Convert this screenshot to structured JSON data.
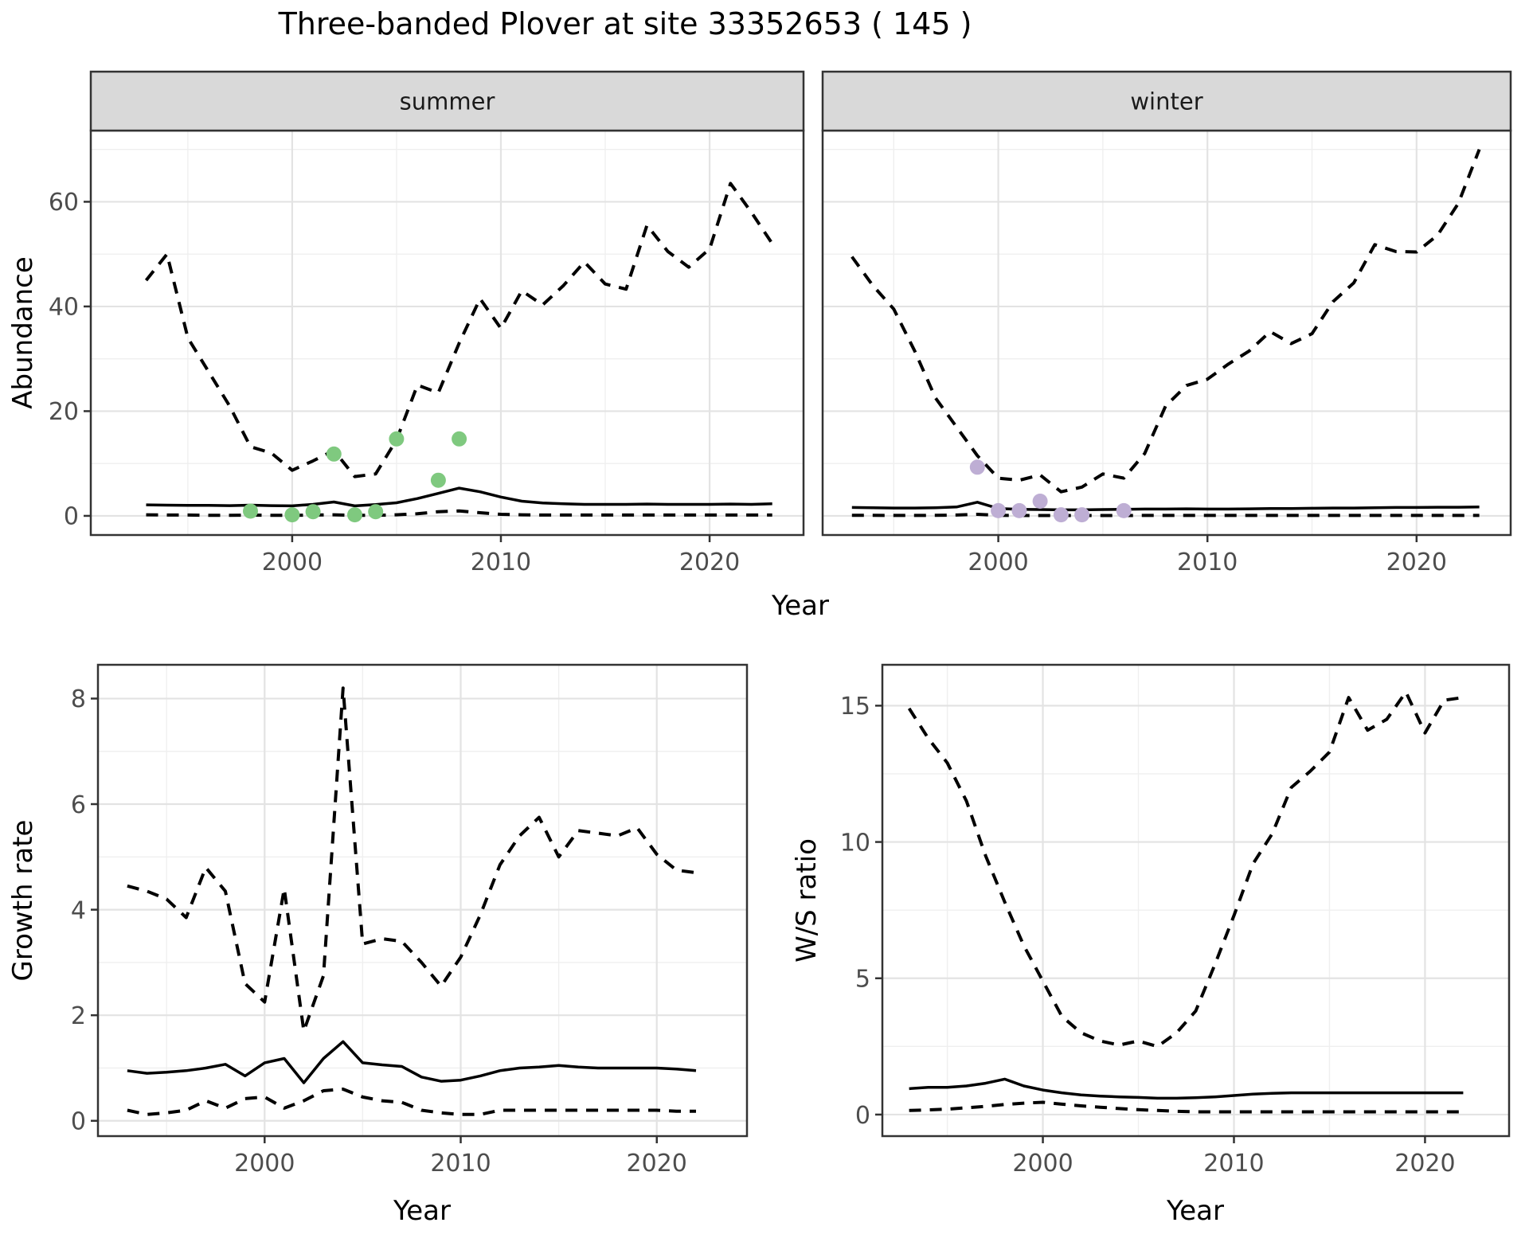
{
  "figure": {
    "title": "Three-banded Plover at site 33352653 ( 145 )"
  },
  "colors": {
    "summer_points": "#7FC97F",
    "winter_points": "#BEAED4",
    "line": "#000000",
    "strip_bg": "#D9D9D9",
    "panel_bg": "#FFFFFF",
    "panel_border": "#333333",
    "grid_major": "#E3E3E3",
    "grid_minor": "#EFEFEF",
    "tick": "#333333",
    "axis_text": "#4D4D4D",
    "title_text": "#000000"
  },
  "chart_data": [
    {
      "id": "abundance-summer",
      "type": "line",
      "facet_label": "summer",
      "ylabel": "Abundance",
      "xlabel": "Year",
      "xlim": [
        1990.35,
        2024.5
      ],
      "ylim": [
        -3.66,
        73.6
      ],
      "xticks": {
        "major": [
          2000,
          2010,
          2020
        ],
        "minor": [
          1995,
          2005,
          2015
        ],
        "labels": [
          "2000",
          "2010",
          "2020"
        ]
      },
      "yticks": {
        "major": [
          0,
          20,
          40,
          60
        ],
        "minor": [
          10,
          30,
          50,
          70
        ],
        "labels": [
          "0",
          "20",
          "40",
          "60"
        ],
        "show_labels": true
      },
      "x": [
        1993,
        1994,
        1995,
        1996,
        1997,
        1998,
        1999,
        2000,
        2001,
        2002,
        2003,
        2004,
        2005,
        2006,
        2007,
        2008,
        2009,
        2010,
        2011,
        2012,
        2013,
        2014,
        2015,
        2016,
        2017,
        2018,
        2019,
        2020,
        2021,
        2022,
        2023
      ],
      "series": [
        {
          "name": "upper_ci",
          "style": "dashed",
          "values": [
            45,
            50,
            34,
            27.5,
            21,
            13.2,
            12,
            8.7,
            10.5,
            12.5,
            7.5,
            8,
            14.5,
            25,
            23.5,
            33,
            41.5,
            35.8,
            43,
            40.3,
            44,
            48.5,
            44.3,
            43.3,
            55.5,
            50.5,
            47.5,
            51,
            63.5,
            58,
            52
          ]
        },
        {
          "name": "median",
          "style": "solid",
          "values": [
            2.1,
            2.05,
            2,
            2,
            1.95,
            2.05,
            1.95,
            1.9,
            2.2,
            2.65,
            1.9,
            2.15,
            2.5,
            3.3,
            4.3,
            5.3,
            4.6,
            3.6,
            2.8,
            2.45,
            2.3,
            2.2,
            2.2,
            2.2,
            2.25,
            2.2,
            2.2,
            2.2,
            2.25,
            2.2,
            2.3
          ]
        },
        {
          "name": "lower_ci",
          "style": "dashed",
          "values": [
            0.2,
            0.15,
            0.15,
            0.1,
            0.1,
            0.15,
            0.1,
            0.1,
            0.15,
            0.2,
            0.1,
            0.1,
            0.2,
            0.4,
            0.8,
            0.95,
            0.6,
            0.3,
            0.2,
            0.15,
            0.15,
            0.15,
            0.15,
            0.15,
            0.15,
            0.15,
            0.15,
            0.15,
            0.15,
            0.15,
            0.15
          ]
        }
      ],
      "points": {
        "name": "observed-counts-summer",
        "color_key": "summer_points",
        "x": [
          1998,
          2000,
          2001,
          2002,
          2003,
          2004,
          2005,
          2007,
          2008
        ],
        "y": [
          0.9,
          0.2,
          0.8,
          11.8,
          0.2,
          0.8,
          14.7,
          6.8,
          14.7
        ]
      }
    },
    {
      "id": "abundance-winter",
      "type": "line",
      "facet_label": "winter",
      "ylabel": "Abundance",
      "xlabel": "Year",
      "xlim": [
        1991.6,
        2024.5
      ],
      "ylim": [
        -3.66,
        73.6
      ],
      "xticks": {
        "major": [
          2000,
          2010,
          2020
        ],
        "minor": [
          1995,
          2005,
          2015
        ],
        "labels": [
          "2000",
          "2010",
          "2020"
        ]
      },
      "yticks": {
        "major": [
          0,
          20,
          40,
          60
        ],
        "minor": [
          10,
          30,
          50,
          70
        ],
        "labels": [
          "0",
          "20",
          "40",
          "60"
        ],
        "show_labels": false
      },
      "x": [
        1993,
        1994,
        1995,
        1996,
        1997,
        1998,
        1999,
        2000,
        2001,
        2002,
        2003,
        2004,
        2005,
        2006,
        2007,
        2008,
        2009,
        2010,
        2011,
        2012,
        2013,
        2014,
        2015,
        2016,
        2017,
        2018,
        2019,
        2020,
        2021,
        2022,
        2023
      ],
      "series": [
        {
          "name": "upper_ci",
          "style": "dashed",
          "values": [
            49.5,
            44,
            39.5,
            31.5,
            22.5,
            17,
            11.5,
            7.2,
            6.8,
            7.8,
            4.6,
            5.5,
            8,
            7.2,
            11.9,
            21,
            24.9,
            26.1,
            29,
            31.5,
            35.2,
            32.9,
            34.8,
            40.9,
            44.5,
            51.8,
            50.5,
            50.4,
            53.6,
            59.7,
            70
          ]
        },
        {
          "name": "median",
          "style": "solid",
          "values": [
            1.6,
            1.55,
            1.5,
            1.5,
            1.55,
            1.7,
            2.6,
            1.4,
            1.25,
            1.2,
            1.15,
            1.15,
            1.2,
            1.25,
            1.3,
            1.3,
            1.35,
            1.3,
            1.3,
            1.35,
            1.4,
            1.4,
            1.45,
            1.5,
            1.5,
            1.55,
            1.6,
            1.6,
            1.65,
            1.65,
            1.7
          ]
        },
        {
          "name": "lower_ci",
          "style": "dashed",
          "values": [
            0.1,
            0.1,
            0.08,
            0.08,
            0.1,
            0.15,
            0.3,
            0.1,
            0.08,
            0.07,
            0.06,
            0.06,
            0.07,
            0.07,
            0.08,
            0.08,
            0.08,
            0.08,
            0.08,
            0.08,
            0.08,
            0.08,
            0.08,
            0.08,
            0.08,
            0.08,
            0.08,
            0.08,
            0.08,
            0.08,
            0.08
          ]
        }
      ],
      "points": {
        "name": "observed-counts-winter",
        "color_key": "winter_points",
        "x": [
          1999,
          2000,
          2001,
          2002,
          2003,
          2004,
          2006
        ],
        "y": [
          9.3,
          1,
          1,
          2.8,
          0.2,
          0.2,
          1
        ]
      }
    },
    {
      "id": "growth-rate",
      "type": "line",
      "facet_label": null,
      "ylabel": "Growth rate",
      "xlabel": "Year",
      "xlim": [
        1991.5,
        2024.6
      ],
      "ylim": [
        -0.29,
        8.64
      ],
      "xticks": {
        "major": [
          2000,
          2010,
          2020
        ],
        "minor": [
          1995,
          2005,
          2015
        ],
        "labels": [
          "2000",
          "2010",
          "2020"
        ]
      },
      "yticks": {
        "major": [
          0,
          2,
          4,
          6,
          8
        ],
        "minor": [
          1,
          3,
          5,
          7
        ],
        "labels": [
          "0",
          "2",
          "4",
          "6",
          "8"
        ],
        "show_labels": true
      },
      "x": [
        1993,
        1994,
        1995,
        1996,
        1997,
        1998,
        1999,
        2000,
        2001,
        2002,
        2003,
        2004,
        2005,
        2006,
        2007,
        2008,
        2009,
        2010,
        2011,
        2012,
        2013,
        2014,
        2015,
        2016,
        2017,
        2018,
        2019,
        2020,
        2021,
        2022
      ],
      "series": [
        {
          "name": "upper_ci",
          "style": "dashed",
          "values": [
            4.45,
            4.35,
            4.2,
            3.85,
            4.8,
            4.35,
            2.6,
            2.25,
            4.4,
            1.7,
            2.75,
            8.2,
            3.35,
            3.45,
            3.4,
            3.0,
            2.55,
            3.1,
            3.9,
            4.85,
            5.4,
            5.75,
            5.0,
            5.5,
            5.45,
            5.4,
            5.55,
            5.05,
            4.75,
            4.7
          ]
        },
        {
          "name": "median",
          "style": "solid",
          "values": [
            0.95,
            0.9,
            0.92,
            0.95,
            1.0,
            1.07,
            0.85,
            1.1,
            1.18,
            0.72,
            1.18,
            1.5,
            1.1,
            1.06,
            1.03,
            0.83,
            0.75,
            0.77,
            0.85,
            0.95,
            1.0,
            1.02,
            1.05,
            1.02,
            1.0,
            1.0,
            1.0,
            1.0,
            0.98,
            0.95
          ]
        },
        {
          "name": "lower_ci",
          "style": "dashed",
          "values": [
            0.2,
            0.12,
            0.15,
            0.2,
            0.38,
            0.24,
            0.42,
            0.45,
            0.24,
            0.38,
            0.57,
            0.6,
            0.45,
            0.38,
            0.35,
            0.2,
            0.15,
            0.12,
            0.12,
            0.2,
            0.2,
            0.2,
            0.2,
            0.2,
            0.2,
            0.2,
            0.2,
            0.2,
            0.18,
            0.18
          ]
        }
      ],
      "points": null
    },
    {
      "id": "ws-ratio",
      "type": "line",
      "facet_label": null,
      "ylabel": "W/S ratio",
      "xlabel": "Year",
      "xlim": [
        1991.6,
        2024.4
      ],
      "ylim": [
        -0.79,
        16.5
      ],
      "xticks": {
        "major": [
          2000,
          2010,
          2020
        ],
        "minor": [
          1995,
          2005,
          2015
        ],
        "labels": [
          "2000",
          "2010",
          "2020"
        ]
      },
      "yticks": {
        "major": [
          0,
          5,
          10,
          15
        ],
        "minor": [
          2.5,
          7.5,
          12.5
        ],
        "labels": [
          "0",
          "5",
          "10",
          "15"
        ],
        "show_labels": true
      },
      "x": [
        1993,
        1994,
        1995,
        1996,
        1997,
        1998,
        1999,
        2000,
        2001,
        2002,
        2003,
        2004,
        2005,
        2006,
        2007,
        2008,
        2009,
        2010,
        2011,
        2012,
        2013,
        2014,
        2015,
        2016,
        2017,
        2018,
        2019,
        2020,
        2021,
        2022
      ],
      "series": [
        {
          "name": "upper_ci",
          "style": "dashed",
          "values": [
            14.9,
            13.8,
            12.9,
            11.5,
            9.5,
            7.8,
            6.2,
            4.9,
            3.6,
            3.0,
            2.7,
            2.55,
            2.7,
            2.5,
            3.0,
            3.8,
            5.5,
            7.3,
            9.2,
            10.3,
            12.0,
            12.6,
            13.3,
            15.3,
            14.1,
            14.5,
            15.5,
            14.0,
            15.2,
            15.3
          ]
        },
        {
          "name": "median",
          "style": "solid",
          "values": [
            0.95,
            1.0,
            1.0,
            1.05,
            1.15,
            1.3,
            1.05,
            0.9,
            0.8,
            0.72,
            0.68,
            0.65,
            0.63,
            0.6,
            0.6,
            0.62,
            0.65,
            0.7,
            0.75,
            0.78,
            0.8,
            0.8,
            0.8,
            0.8,
            0.8,
            0.8,
            0.8,
            0.8,
            0.8,
            0.8
          ]
        },
        {
          "name": "lower_ci",
          "style": "dashed",
          "values": [
            0.15,
            0.17,
            0.2,
            0.25,
            0.3,
            0.37,
            0.42,
            0.45,
            0.38,
            0.32,
            0.27,
            0.22,
            0.18,
            0.15,
            0.12,
            0.1,
            0.1,
            0.1,
            0.1,
            0.1,
            0.1,
            0.1,
            0.1,
            0.1,
            0.1,
            0.1,
            0.1,
            0.1,
            0.1,
            0.1
          ]
        }
      ],
      "points": null
    }
  ]
}
